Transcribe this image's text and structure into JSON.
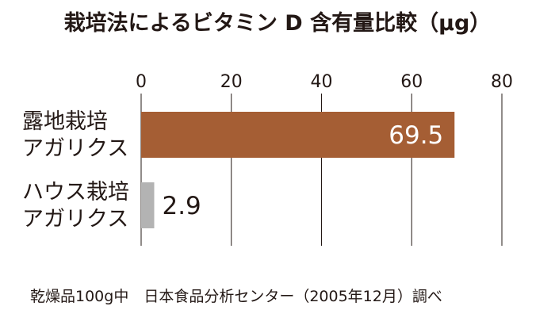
{
  "chart_data": {
    "type": "bar",
    "orientation": "horizontal",
    "title": "栽培法によるビタミン D 含有量比較（μg）",
    "categories": [
      [
        "露地栽培",
        "アガリクス"
      ],
      [
        "ハウス栽培",
        "アガリクス"
      ]
    ],
    "values": [
      69.5,
      2.9
    ],
    "value_labels": [
      "69.5",
      "2.9"
    ],
    "xlim": [
      0,
      80
    ],
    "xticks": [
      0,
      20,
      40,
      60,
      80
    ],
    "x_axis_position": "top",
    "grid": true,
    "legend": "none",
    "bar_colors": [
      "#A55E34",
      "#B3B3B3"
    ],
    "gridline_color": "#231815",
    "footnote": "乾燥品100g中　日本食品分析センター（2005年12月）調べ"
  }
}
